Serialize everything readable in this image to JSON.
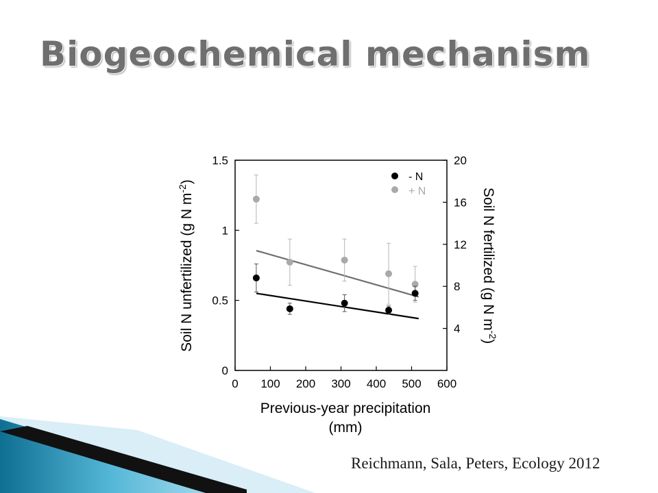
{
  "slide": {
    "title": "Biogeochemical mechanism",
    "citation": "Reichmann, Sala, Peters, Ecology 2012"
  },
  "chart_data": {
    "type": "scatter",
    "xlabel": "Previous-year precipitation",
    "xlabel_unit": "(mm)",
    "ylabel_left": "Soil N unfertilized (g N m",
    "ylabel_left_sup": "-2",
    "ylabel_left_close": ")",
    "ylabel_right": "Soil N fertilized (g N m",
    "ylabel_right_sup": "-2",
    "ylabel_right_close": ")",
    "xlim": [
      0,
      600
    ],
    "ylim_left": [
      0,
      1.5
    ],
    "ylim_right": [
      0,
      20
    ],
    "xticks": [
      "0",
      "100",
      "200",
      "300",
      "400",
      "500",
      "600"
    ],
    "yticks_left": [
      "0",
      "0.5",
      "1",
      "1.5"
    ],
    "yticks_right": [
      "4",
      "8",
      "12",
      "16",
      "20"
    ],
    "legend_position": "top-right",
    "grid": false,
    "series": [
      {
        "name": "- N",
        "axis": "left",
        "color": "#000000",
        "x": [
          60,
          155,
          310,
          435,
          510
        ],
        "y": [
          0.66,
          0.44,
          0.48,
          0.43,
          0.55
        ],
        "err": [
          0.1,
          0.04,
          0.06,
          0.03,
          0.05
        ],
        "fit": {
          "x": [
            60,
            520
          ],
          "y": [
            0.55,
            0.37
          ]
        }
      },
      {
        "name": "+ N",
        "axis": "right",
        "color": "#a9a9a9",
        "x": [
          60,
          155,
          310,
          435,
          510
        ],
        "y": [
          16.3,
          10.3,
          10.5,
          9.2,
          8.2
        ],
        "err": [
          2.3,
          2.2,
          2.0,
          2.9,
          1.7
        ],
        "fit": {
          "x": [
            60,
            520
          ],
          "y": [
            11.4,
            7.0
          ]
        }
      }
    ]
  }
}
